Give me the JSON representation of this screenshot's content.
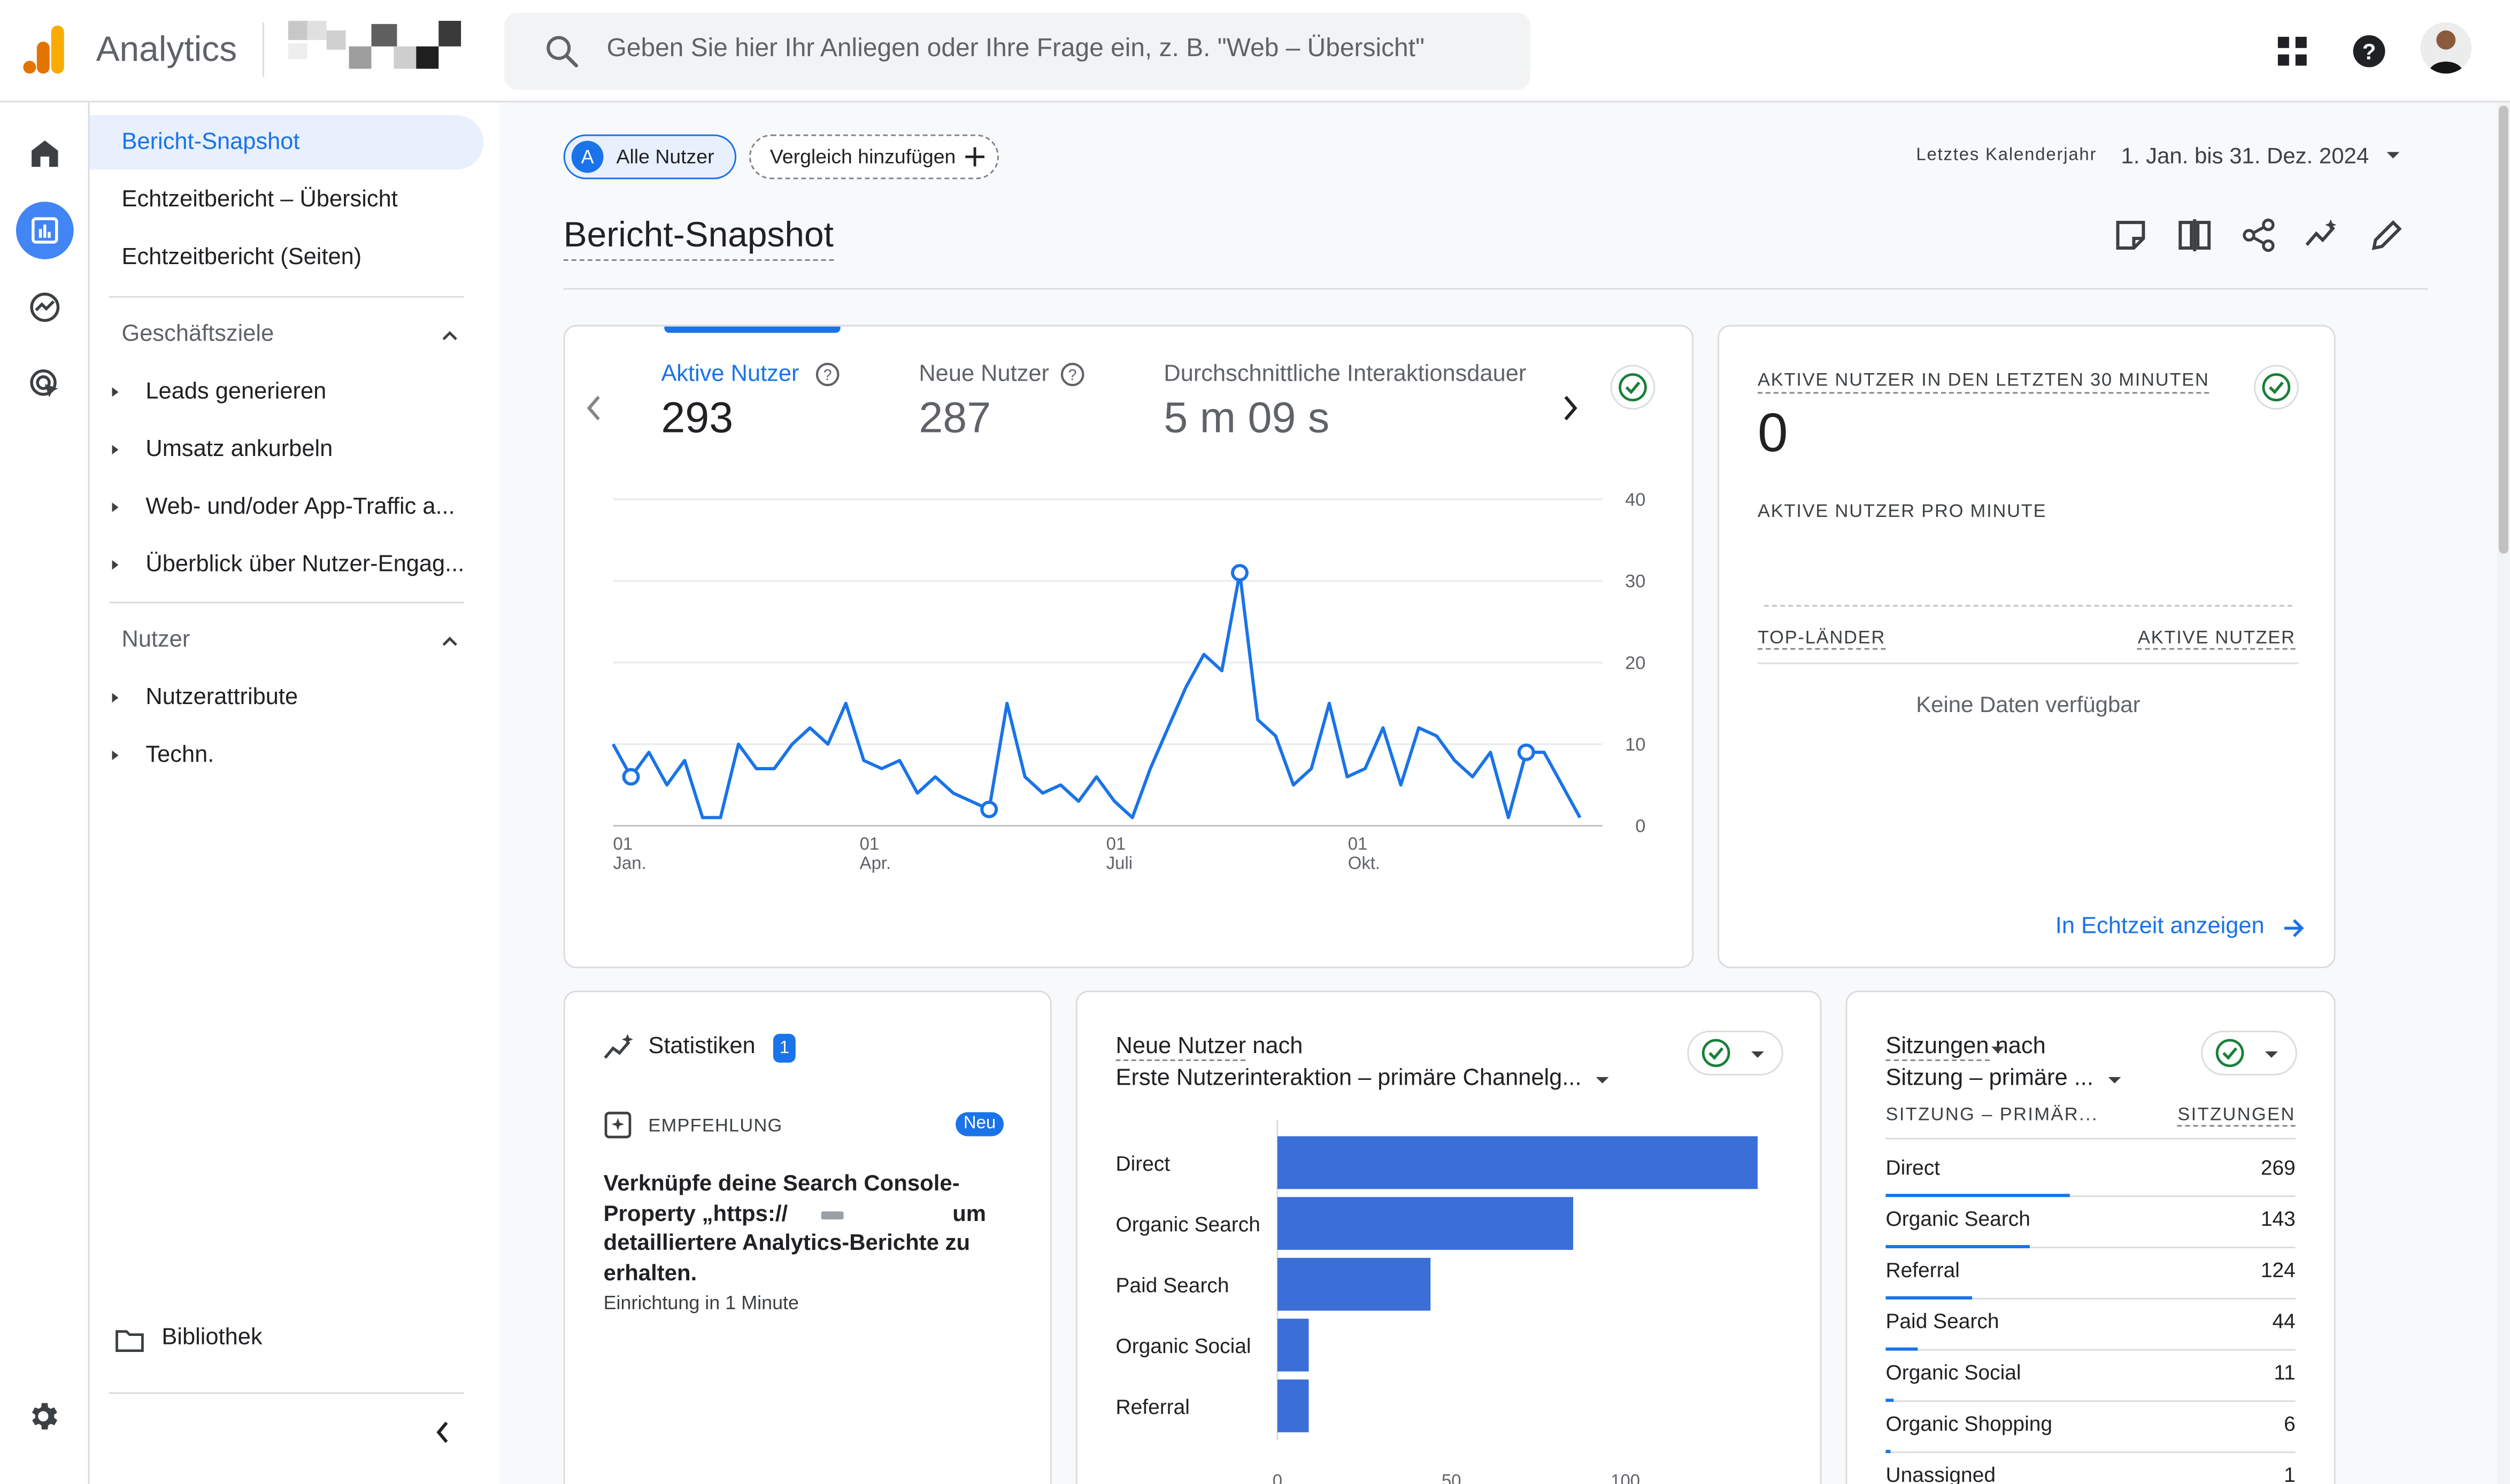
{
  "app": {
    "title": "Analytics",
    "brand_colors": {
      "logo_dark": "#e37400",
      "logo_light": "#f9ab00",
      "accent": "#1a73e8"
    }
  },
  "search": {
    "placeholder": "Geben Sie hier Ihr Anliegen oder Ihre Frage ein, z. B. \"Web – Übersicht\""
  },
  "topbar": {
    "icons": [
      "apps-grid-icon",
      "help-icon"
    ]
  },
  "rail": {
    "items": [
      "home-icon",
      "reports-icon",
      "explore-icon",
      "advertising-icon"
    ],
    "settings_icon": "gear-icon"
  },
  "nav": {
    "items": [
      {
        "label": "Bericht-Snapshot",
        "active": true
      },
      {
        "label": "Echtzeitbericht – Übersicht"
      },
      {
        "label": "Echtzeitbericht (Seiten)"
      }
    ],
    "sections": [
      {
        "title": "Geschäftsziele",
        "items": [
          "Leads generieren",
          "Umsatz ankurbeln",
          "Web- und/oder App-Traffic a...",
          "Überblick über Nutzer-Engag..."
        ]
      },
      {
        "title": "Nutzer",
        "items": [
          "Nutzerattribute",
          "Techn."
        ]
      }
    ],
    "library": "Bibliothek"
  },
  "filters": {
    "segment_badge": "A",
    "segment": "Alle Nutzer",
    "compare": "Vergleich hinzufügen",
    "date_label": "Letztes Kalenderjahr",
    "date_value": "1. Jan. bis 31. Dez. 2024"
  },
  "page": {
    "title": "Bericht-Snapshot",
    "toolbar_icons": [
      "annotation-icon",
      "compare-icon",
      "share-icon",
      "insights-icon",
      "edit-icon"
    ]
  },
  "overview_card": {
    "metrics": [
      {
        "label": "Aktive Nutzer",
        "value": "293",
        "selected": true
      },
      {
        "label": "Neue Nutzer",
        "value": "287"
      },
      {
        "label": "Durchschnittliche Interaktionsdauer",
        "value": "5 m 09 s"
      }
    ],
    "chart_data": {
      "type": "line",
      "series": [
        {
          "values": [
            10,
            6,
            9,
            5,
            8,
            1,
            1,
            10,
            7,
            7,
            10,
            12,
            10,
            15,
            8,
            7,
            8,
            4,
            6,
            4,
            3,
            2,
            15,
            6,
            4,
            5,
            3,
            6,
            3,
            1,
            7,
            12,
            17,
            21,
            19,
            31,
            13,
            11,
            5,
            7,
            15,
            6,
            7,
            12,
            5,
            12,
            11,
            8,
            6,
            9,
            1,
            9,
            9,
            5,
            1
          ]
        }
      ],
      "x_ticks": [
        {
          "day": "01",
          "month": "Jan."
        },
        {
          "day": "01",
          "month": "Apr."
        },
        {
          "day": "01",
          "month": "Juli"
        },
        {
          "day": "01",
          "month": "Okt."
        }
      ],
      "y_ticks": [
        "40",
        "30",
        "20",
        "10",
        "0"
      ],
      "ylim": [
        0,
        40
      ],
      "grid": true,
      "color": "#1a73e8"
    }
  },
  "realtime_card": {
    "title": "AKTIVE NUTZER IN DEN LETZTEN 30 MINUTEN",
    "value": "0",
    "subtitle": "AKTIVE NUTZER PRO MINUTE",
    "col_left": "TOP-LÄNDER",
    "col_right": "AKTIVE NUTZER",
    "empty": "Keine Daten verfügbar",
    "link": "In Echtzeit anzeigen"
  },
  "insights_card": {
    "title": "Statistiken",
    "count": "1",
    "rec_label": "EMPFEHLUNG",
    "new_badge": "Neu",
    "text_1": "Verknüpfe deine Search Console-",
    "text_2": "Property „https://",
    "text_3": "um",
    "text_4": "detailliertere Analytics-Berichte zu",
    "text_5": "erhalten.",
    "subtext": "Einrichtung in 1 Minute"
  },
  "new_users_card": {
    "title_metric": "Neue Nutzer",
    "title_by": " nach",
    "dimension": "Erste Nutzerinteraktion – primäre Channelg...",
    "chart_data": {
      "type": "bar",
      "orientation": "horizontal",
      "categories": [
        "Direct",
        "Organic Search",
        "Paid Search",
        "Organic Social",
        "Referral"
      ],
      "values": [
        138,
        85,
        44,
        9,
        9
      ],
      "x_ticks": [
        "0",
        "50",
        "100"
      ],
      "xlim": [
        0,
        138
      ],
      "color": "#3b6fd8"
    }
  },
  "sessions_card": {
    "title_metric": "Sitzungen",
    "title_by": " nach",
    "dimension": "Sitzung – primäre ...",
    "col_left": "SITZUNG – PRIMÄR...",
    "col_right": "SITZUNGEN",
    "rows": [
      {
        "name": "Direct",
        "value": "269",
        "share": 0.45
      },
      {
        "name": "Organic Search",
        "value": "143",
        "share": 0.35
      },
      {
        "name": "Referral",
        "value": "124",
        "share": 0.21
      },
      {
        "name": "Paid Search",
        "value": "44",
        "share": 0.08
      },
      {
        "name": "Organic Social",
        "value": "11",
        "share": 0.02
      },
      {
        "name": "Organic Shopping",
        "value": "6",
        "share": 0.01
      },
      {
        "name": "Unassigned",
        "value": "1",
        "share": 0.004
      }
    ]
  }
}
